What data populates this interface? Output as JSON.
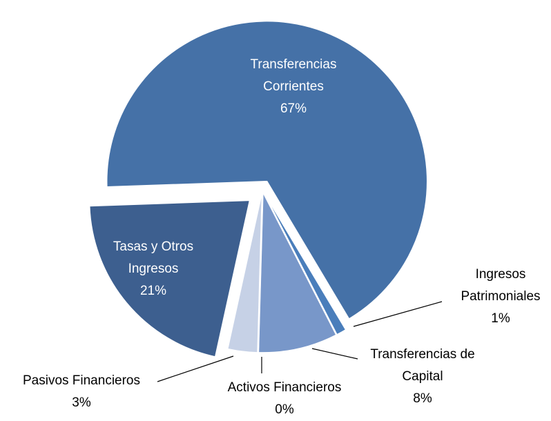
{
  "chart_data": {
    "type": "pie",
    "categories": [
      "Transferencias Corrientes",
      "Ingresos Patrimoniales",
      "Transferencias de Capital",
      "Activos Financieros",
      "Pasivos Financieros",
      "Tasas y Otros Ingresos"
    ],
    "values": [
      67,
      1,
      8,
      0,
      3,
      21
    ],
    "value_labels": [
      "67%",
      "1%",
      "8%",
      "0%",
      "3%",
      "21%"
    ],
    "colors": [
      "#4571a7",
      "#4a7ebb",
      "#7897c9",
      "#3c6090",
      "#c6d1e6",
      "#3d5f8f"
    ]
  }
}
